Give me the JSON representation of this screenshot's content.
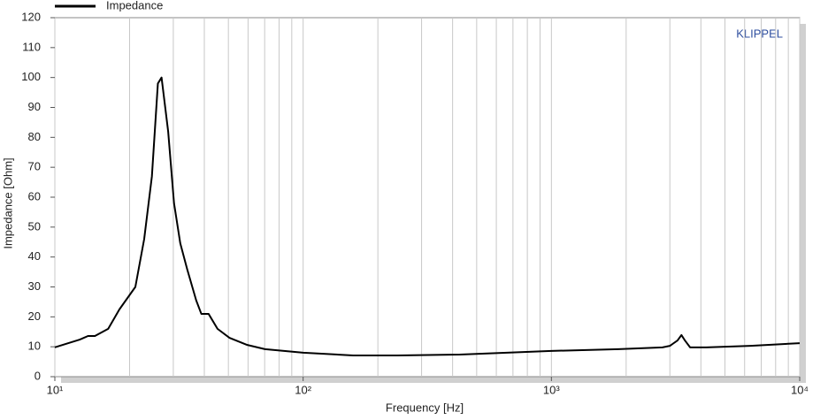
{
  "chart_data": {
    "type": "line",
    "legend": "top-left",
    "annotation": "KLIPPEL",
    "xlabel": "Frequency  [Hz]",
    "ylabel": "Impedance  [Ohm]",
    "xscale": "log",
    "grid": "x",
    "x": [
      10,
      12.6,
      13.6,
      14.5,
      16.4,
      18.2,
      21.1,
      22.9,
      24.6,
      26,
      26.9,
      28.6,
      30.2,
      32,
      34.1,
      37.1,
      38.9,
      41.6,
      45.2,
      50.5,
      59.6,
      70.2,
      100,
      159,
      240,
      427,
      1000,
      1866,
      2800,
      3000,
      3220,
      3340,
      3450,
      3620,
      4200,
      6340,
      10000
    ],
    "series": [
      {
        "name": "Impedance",
        "color": "#000000",
        "values": [
          9.8,
          12.4,
          13.6,
          13.6,
          16,
          22.5,
          30,
          46,
          67,
          98,
          100,
          82,
          58,
          44.6,
          36,
          25.5,
          21,
          21,
          16,
          13,
          10.6,
          9.2,
          8,
          7.1,
          7.1,
          7.4,
          8.6,
          9.2,
          9.8,
          10.3,
          12.1,
          13.9,
          12.1,
          9.8,
          9.8,
          10.3,
          11.2
        ]
      }
    ],
    "xlim": [
      10,
      10000
    ],
    "xticks": [
      {
        "value": 10,
        "label": "10¹"
      },
      {
        "value": 100,
        "label": "10²"
      },
      {
        "value": 1000,
        "label": "10³"
      },
      {
        "value": 10000,
        "label": "10⁴"
      }
    ],
    "ylim": [
      0,
      120
    ],
    "yticks": [
      0,
      10,
      20,
      30,
      40,
      50,
      60,
      70,
      80,
      90,
      100,
      110,
      120
    ]
  }
}
